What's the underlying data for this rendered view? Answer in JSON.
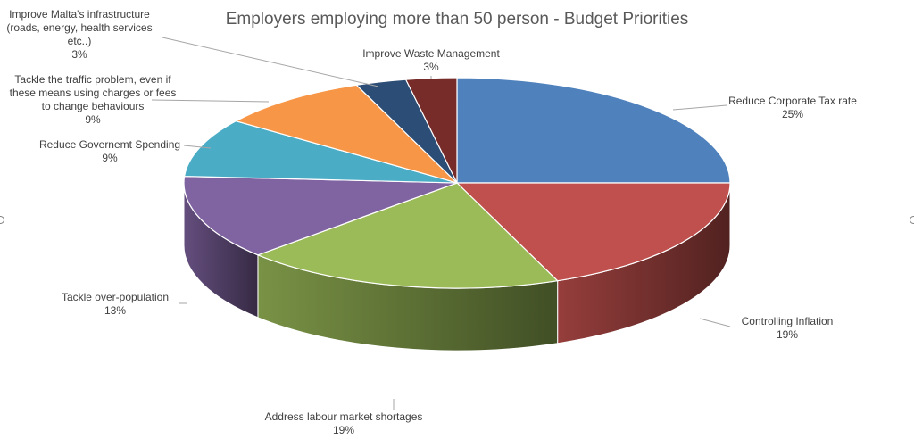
{
  "chart_data": {
    "type": "pie",
    "title": "Employers employing more than 50 person - Budget Priorities",
    "three_d": true,
    "data_labels": "outside with leader lines",
    "slices": [
      {
        "label": "Reduce Corporate Tax rate",
        "value": 25,
        "pct_label": "25%",
        "color": "#4F81BD"
      },
      {
        "label": "Controlling Inflation",
        "value": 19,
        "pct_label": "19%",
        "color": "#C0504D"
      },
      {
        "label": "Address labour market shortages",
        "value": 19,
        "pct_label": "19%",
        "color": "#9BBB59"
      },
      {
        "label": "Tackle over-population",
        "value": 13,
        "pct_label": "13%",
        "color": "#8064A2"
      },
      {
        "label": "Reduce Governemt Spending",
        "value": 9,
        "pct_label": "9%",
        "color": "#4BACC6"
      },
      {
        "label": "Tackle the traffic problem, even if these means using charges or fees to change behaviours",
        "value": 9,
        "pct_label": "9%",
        "color": "#F79646"
      },
      {
        "label": "Improve Malta's infrastructure (roads, energy, health services etc..)",
        "value": 3,
        "pct_label": "3%",
        "color": "#2C4D75"
      },
      {
        "label": "Improve Waste Management",
        "value": 3,
        "pct_label": "3%",
        "color": "#772C2A"
      }
    ]
  }
}
